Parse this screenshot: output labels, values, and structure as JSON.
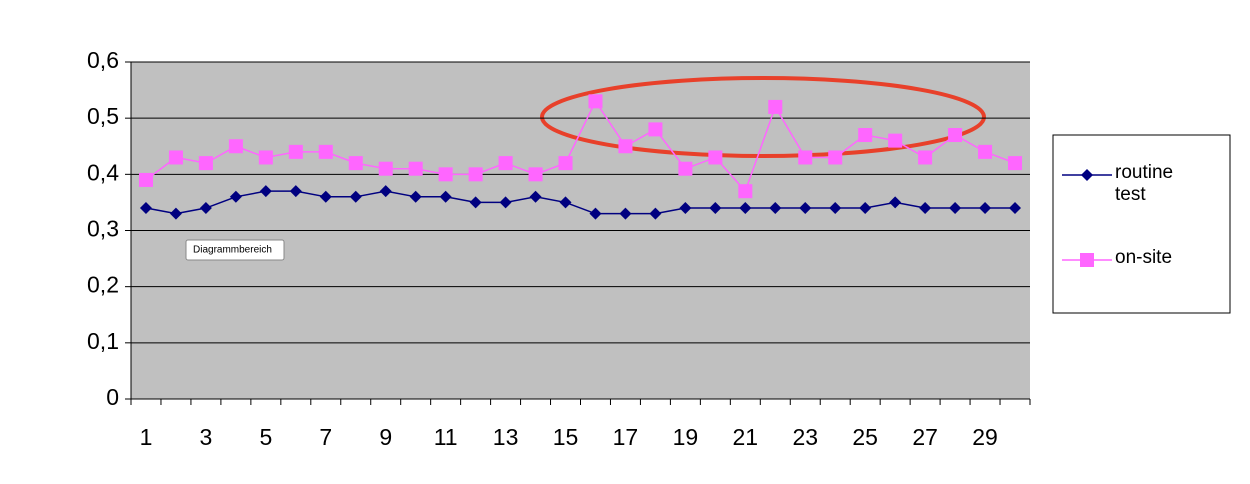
{
  "chart_data": {
    "type": "line",
    "categories": [
      1,
      null,
      3,
      null,
      5,
      null,
      7,
      null,
      9,
      null,
      11,
      null,
      13,
      null,
      15,
      null,
      17,
      null,
      19,
      null,
      21,
      null,
      23,
      null,
      25,
      null,
      27,
      null,
      29,
      null
    ],
    "series": [
      {
        "name": "routine test",
        "color": "#000080",
        "marker": "diamond",
        "values": [
          0.34,
          0.33,
          0.34,
          0.36,
          0.37,
          0.37,
          0.36,
          0.36,
          0.37,
          0.36,
          0.36,
          0.35,
          0.35,
          0.36,
          0.35,
          0.33,
          0.33,
          0.33,
          0.34,
          0.34,
          0.34,
          0.34,
          0.34,
          0.34,
          0.34,
          0.35,
          0.34,
          0.34,
          0.34,
          0.34
        ]
      },
      {
        "name": "on-site",
        "color": "#ff66ff",
        "marker": "square",
        "values": [
          0.39,
          0.43,
          0.42,
          0.45,
          0.43,
          0.44,
          0.44,
          0.42,
          0.41,
          0.41,
          0.4,
          0.4,
          0.42,
          0.4,
          0.42,
          0.53,
          0.45,
          0.48,
          0.41,
          0.43,
          0.37,
          0.52,
          0.43,
          0.43,
          0.47,
          0.46,
          0.43,
          0.47,
          0.44,
          0.42
        ]
      }
    ],
    "ylim": [
      0,
      0.6
    ],
    "yticks": [
      0,
      {
        "value": 0.1,
        "label": "0,1"
      },
      {
        "value": 0.2,
        "label": "0,2"
      },
      {
        "value": 0.3,
        "label": "0,3"
      },
      {
        "value": 0.4,
        "label": "0,4"
      },
      {
        "value": 0.5,
        "label": "0,5"
      },
      {
        "value": 0.6,
        "label": "0,6"
      }
    ],
    "grid": true,
    "legend": "right",
    "plot_background": "#c0c0c0",
    "tooltip": "Diagrammbereich"
  }
}
